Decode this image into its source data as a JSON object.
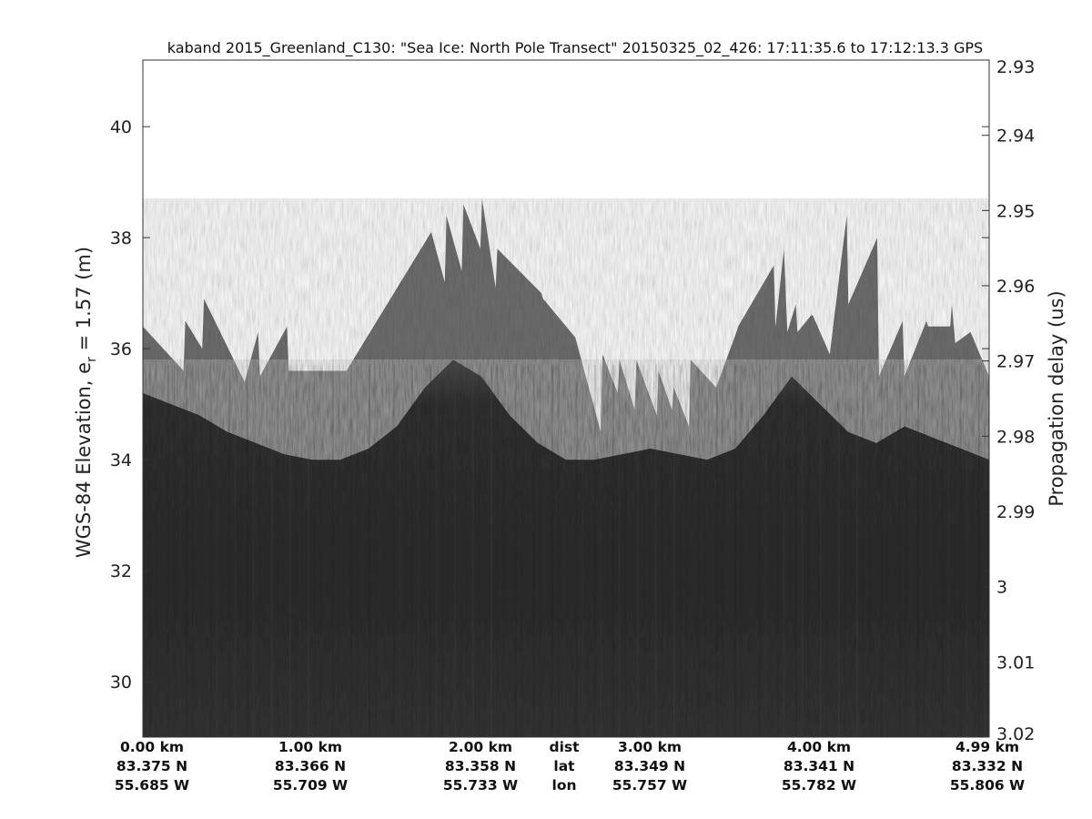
{
  "chart_data": {
    "type": "radar-echogram",
    "title": "kaband 2015_Greenland_C130: \"Sea Ice: North Pole Transect\"  20150325_02_426: 17:11:35.6 to 17:12:13.3 GPS",
    "ylabel_left_main": "WGS-84 Elevation, e",
    "ylabel_left_sub": "r",
    "ylabel_left_tail": " = 1.57 (m)",
    "ylabel_right": "Propagation delay (us)",
    "y_left_ticks": [
      "30",
      "32",
      "34",
      "36",
      "38",
      "40"
    ],
    "y_left_lim": [
      29,
      41.2
    ],
    "y_right_ticks": [
      "2.93",
      "2.94",
      "2.95",
      "2.96",
      "2.97",
      "2.98",
      "2.99",
      "3",
      "3.01",
      "3.02"
    ],
    "y_right_lim": [
      2.93,
      3.02
    ],
    "x_lim_km": [
      0,
      4.99
    ],
    "distance_labels": [
      "0.00 km",
      "1.00 km",
      "2.00 km",
      "3.00 km",
      "4.00 km",
      "4.99 km"
    ],
    "lat_labels": [
      "83.375 N",
      "83.366 N",
      "83.358 N",
      "83.349 N",
      "83.341 N",
      "83.332 N"
    ],
    "lon_labels": [
      "55.685 W",
      "55.709 W",
      "55.733 W",
      "55.757 W",
      "55.782 W",
      "55.806 W"
    ],
    "row_labels": [
      "dist",
      "lat",
      "lon"
    ],
    "surface_profile": {
      "x_km": [
        0.0,
        0.24,
        0.25,
        0.35,
        0.36,
        0.6,
        0.68,
        0.69,
        0.85,
        0.86,
        1.2,
        1.7,
        1.78,
        1.79,
        1.88,
        1.89,
        1.99,
        2.0,
        2.08,
        2.09,
        2.35,
        2.36,
        2.55,
        2.7,
        2.71,
        2.8,
        2.81,
        2.9,
        2.91,
        3.03,
        3.04,
        3.12,
        3.13,
        3.22,
        3.23,
        3.38,
        3.5,
        3.51,
        3.72,
        3.73,
        3.78,
        3.8,
        3.85,
        3.86,
        3.94,
        3.95,
        4.05,
        4.15,
        4.16,
        4.33,
        4.34,
        4.48,
        4.49,
        4.62,
        4.63,
        4.76,
        4.77,
        4.79,
        4.88,
        4.99
      ],
      "elev_m": [
        36.4,
        35.6,
        36.5,
        36.0,
        36.9,
        35.4,
        36.3,
        35.5,
        36.4,
        35.6,
        35.6,
        38.1,
        37.2,
        38.4,
        37.4,
        38.6,
        37.8,
        38.7,
        37.1,
        37.8,
        37.0,
        36.9,
        36.2,
        34.5,
        35.9,
        35.2,
        35.8,
        34.9,
        35.8,
        34.8,
        35.6,
        34.9,
        35.3,
        34.6,
        35.8,
        35.3,
        36.3,
        36.4,
        37.5,
        36.4,
        37.8,
        36.3,
        36.8,
        36.3,
        36.6,
        36.6,
        35.9,
        38.4,
        36.8,
        38.0,
        35.5,
        36.5,
        35.5,
        36.5,
        36.4,
        36.4,
        36.8,
        36.1,
        36.3,
        35.5
      ]
    },
    "dark_layer_top_m": [
      35.2,
      35.0,
      34.8,
      34.5,
      34.3,
      34.1,
      34.0,
      34.0,
      34.2,
      34.6,
      35.3,
      35.8,
      35.5,
      34.8,
      34.3,
      34.0,
      34.0,
      34.1,
      34.2,
      34.1,
      34.0,
      34.2,
      34.8,
      35.5,
      35.0,
      34.5,
      34.3,
      34.6,
      34.4,
      34.2,
      34.0
    ],
    "grid": false,
    "colormap": "grayscale"
  }
}
